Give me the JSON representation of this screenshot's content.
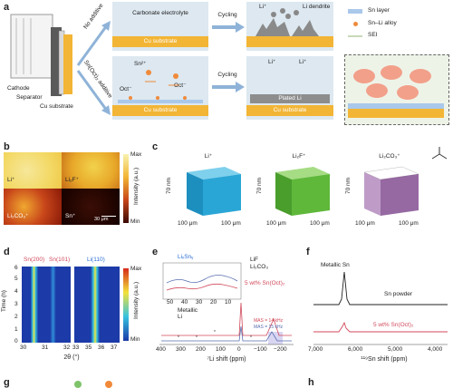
{
  "panels": {
    "a": {
      "label": "a",
      "cell_labels": {
        "cathode": "Cathode",
        "separator": "Separator",
        "cu_substrate": "Cu substrate"
      },
      "branch_no_additive": "No additive",
      "branch_additive": "Sn(Oct)₂ additive",
      "top": {
        "electrolyte": "Carbonate electrolyte",
        "substrate": "Cu substrate",
        "arrow": "Cycling",
        "li_ion": "Li⁺",
        "li_dendrite": "Li dendrite"
      },
      "bottom": {
        "sn_ion": "Sn²⁺",
        "oct1": "Oct⁻",
        "oct2": "Oct⁻",
        "substrate": "Cu substrate",
        "arrow": "Cycling",
        "plated": "Plated Li",
        "li1": "Li⁺",
        "li2": "Li⁺",
        "substrate2": "Cu substrate"
      },
      "legend": [
        {
          "label": "Sn layer",
          "color": "#a9c8ea"
        },
        {
          "label": "Sn–Li alloy",
          "color": "#f08a3a"
        },
        {
          "label": "SEI",
          "color": "#c8d8b8"
        }
      ]
    },
    "b": {
      "label": "b",
      "maps": [
        {
          "label": "Li⁺"
        },
        {
          "label": "Li₂F⁺"
        },
        {
          "label": "Li₂CO₃⁺"
        },
        {
          "label": "Sn⁺"
        }
      ],
      "scalebar": "30 μm",
      "colorbar": {
        "max": "Max",
        "min": "Min",
        "title": "Intensity (a.u.)"
      }
    },
    "c": {
      "label": "c",
      "cubes": [
        {
          "title": "Li⁺",
          "z": "70 nm",
          "x": "100 μm",
          "y": "100 μm",
          "color": "#2aa6d6"
        },
        {
          "title": "Li₂F⁺",
          "z": "70 nm",
          "x": "100 μm",
          "y": "100 μm",
          "color": "#5fb83a"
        },
        {
          "title": "Li₂CO₃⁺",
          "z": "70 nm",
          "x": "100 μm",
          "y": "100 μm",
          "color": "#6a2a7a"
        }
      ]
    },
    "d": {
      "label": "d",
      "peaks": [
        "Sn(200)",
        "Sn(101)",
        "Li(110)"
      ],
      "ylabel": "Time (h)",
      "yticks": [
        "0",
        "1",
        "2",
        "3",
        "4",
        "5",
        "6"
      ],
      "xticks_left": [
        "30",
        "31",
        "32"
      ],
      "xticks_right": [
        "33",
        "35",
        "36",
        "37"
      ],
      "xlabel": "2θ (°)",
      "colorbar": {
        "max": "Max",
        "min": "Min",
        "title": "Intensity (a.u.)"
      }
    },
    "e": {
      "label": "e",
      "inset_label": "LiₓSnᵧ",
      "inset_xticks": [
        "50",
        "40",
        "30",
        "20",
        "10"
      ],
      "legend": [
        "LiF",
        "Li₂CO₃"
      ],
      "metallic": "Metallic Li",
      "trace_red": "5 wt% Sn(Oct)₂",
      "mas1": "MAS = 14 kHz",
      "mas2": "MAS = 15 kHz",
      "xticks": [
        "400",
        "300",
        "200",
        "100",
        "0",
        "−100",
        "−200"
      ],
      "xlabel": "⁷Li shift (ppm)"
    },
    "f": {
      "label": "f",
      "metallic": "Metallic Sn",
      "trace_black": "Sn powder",
      "trace_red": "5 wt% Sn(Oct)₂",
      "xticks": [
        "7,000",
        "6,000",
        "5,000",
        "4,000"
      ],
      "xlabel": "¹¹⁹Sn shift (ppm)"
    },
    "g": {
      "label": "g"
    },
    "h": {
      "label": "h"
    }
  }
}
